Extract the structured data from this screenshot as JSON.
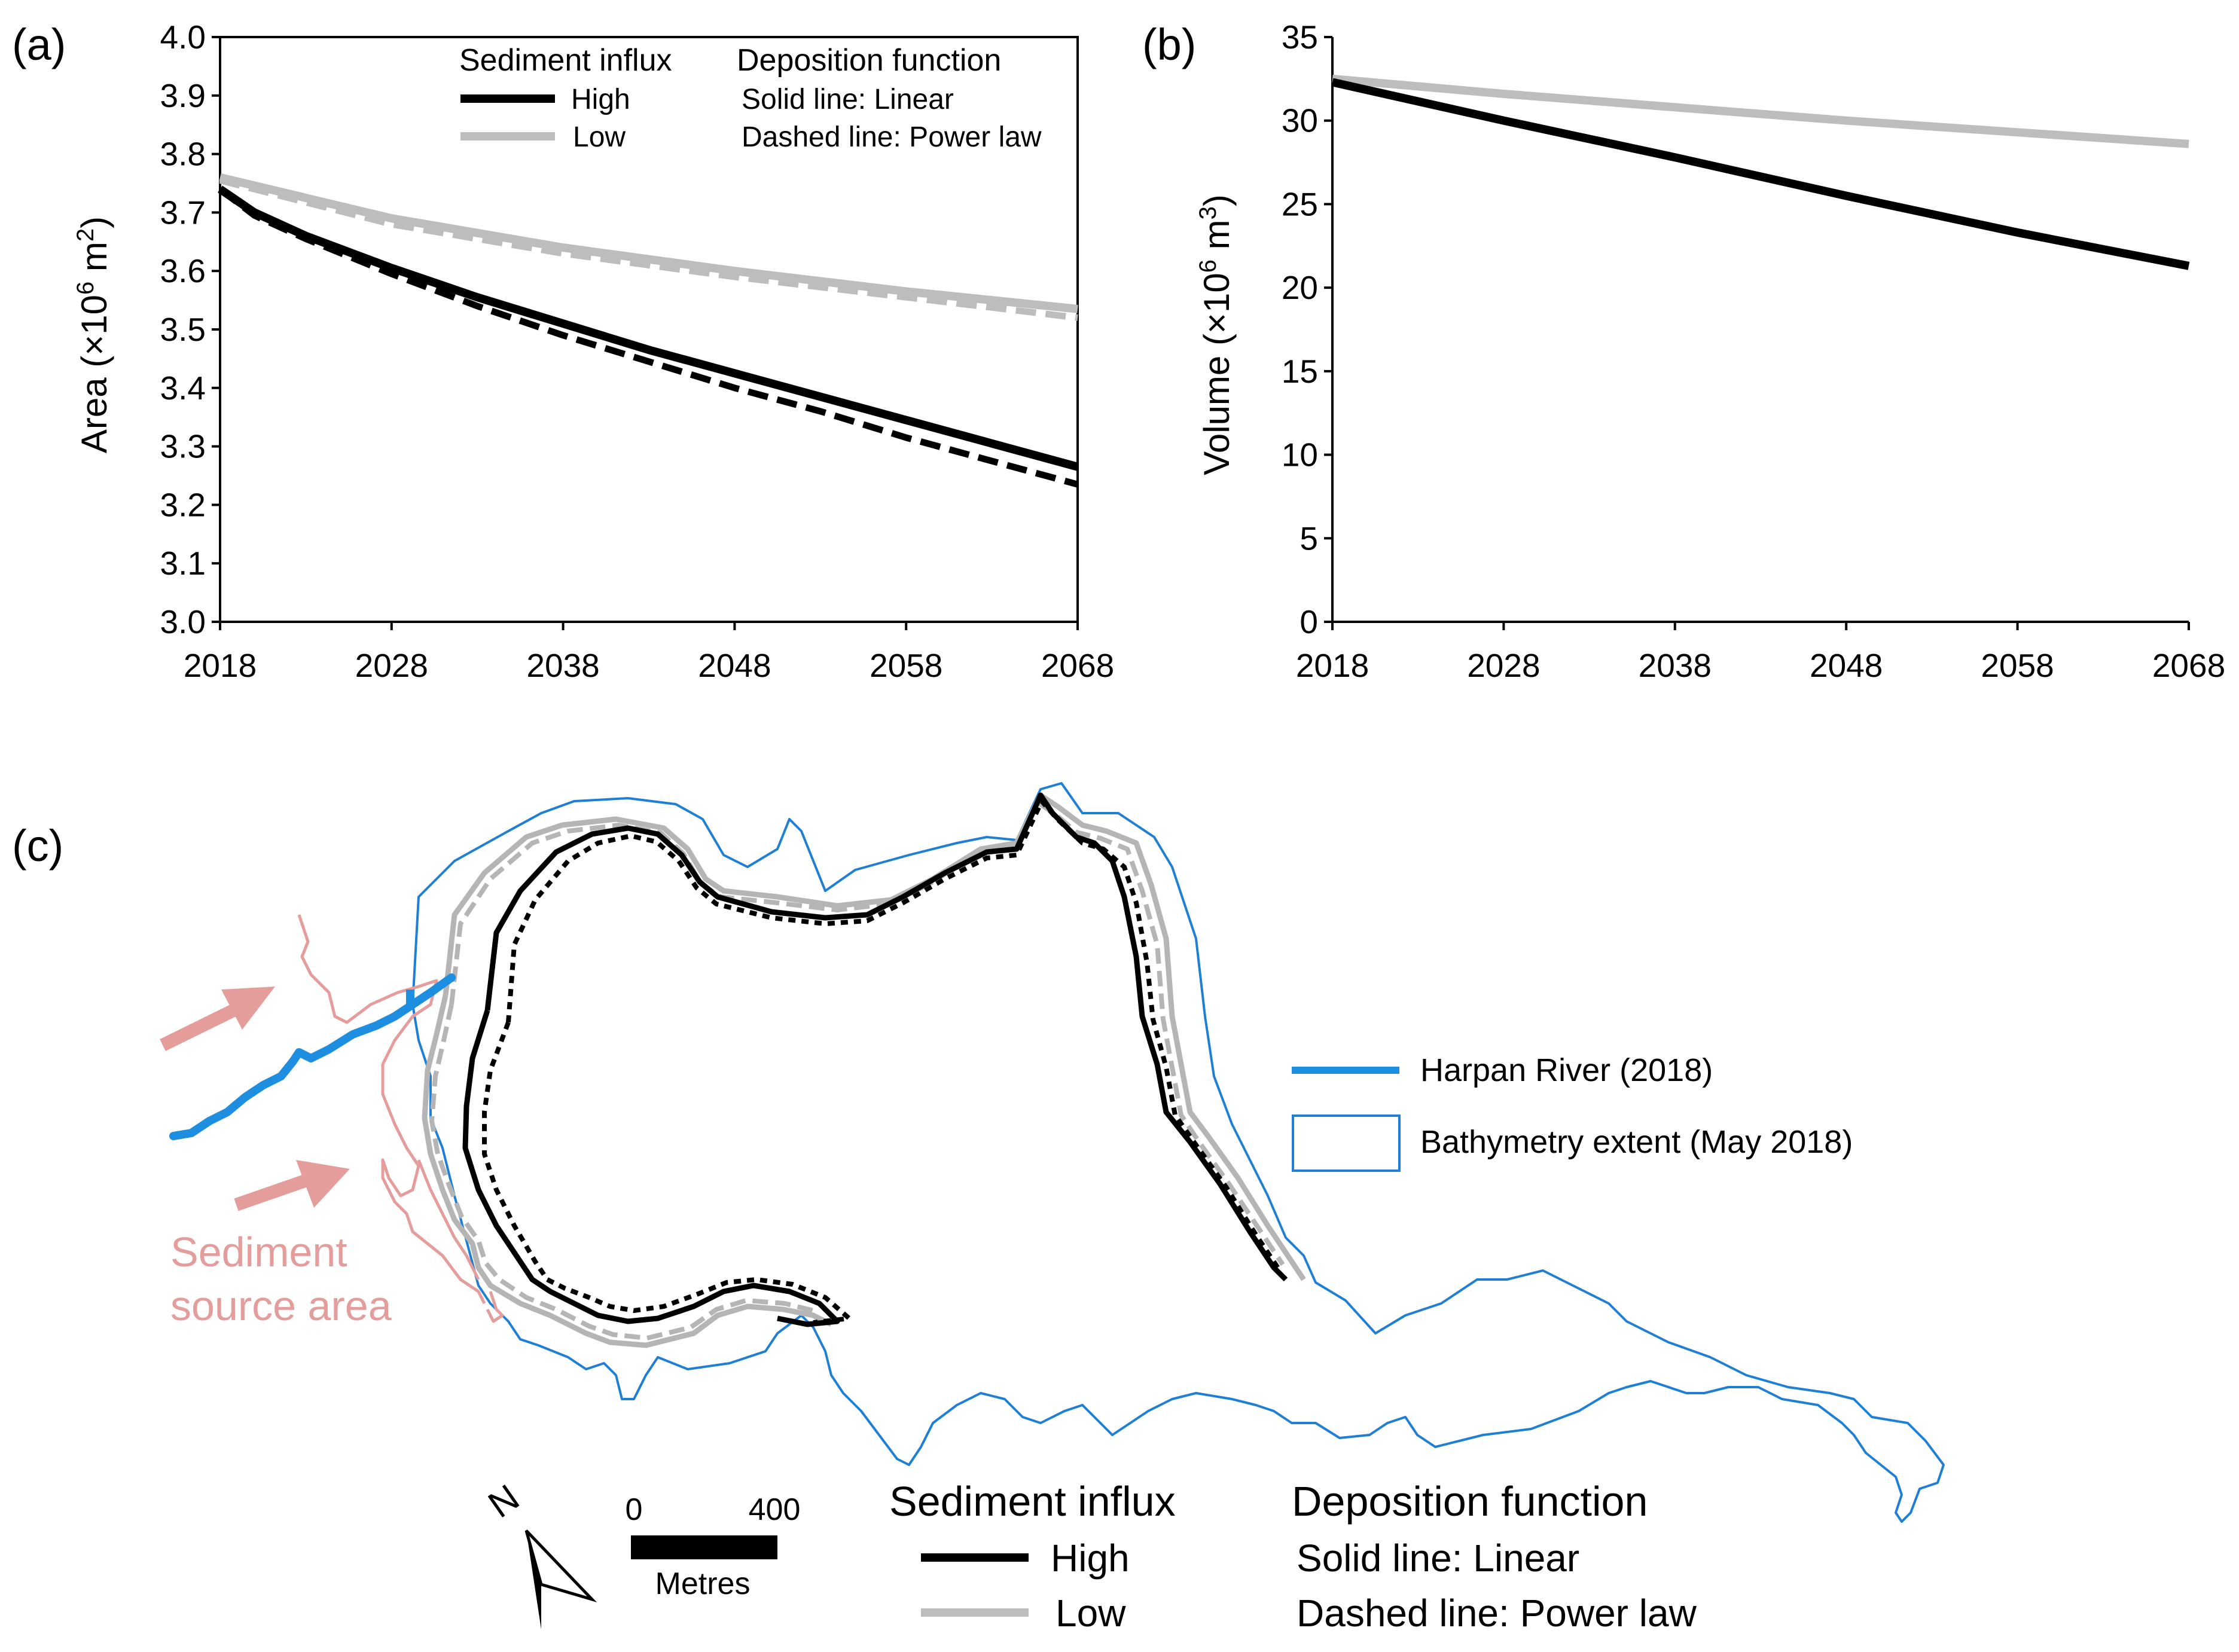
{
  "panel_a": {
    "label": "(a)",
    "ylabel": "Area (×10⁶ m²)",
    "ylabel_parts": {
      "prefix": "Area (×10",
      "exp1": "6",
      "mid": " m",
      "exp2": "2",
      "suffix": ")"
    },
    "legend": {
      "influx_title": "Sediment influx",
      "high": "High",
      "low": "Low",
      "deposition_title": "Deposition function",
      "solid": "Solid line: Linear",
      "dashed": "Dashed line: Power law"
    }
  },
  "panel_b": {
    "label": "(b)",
    "ylabel": "Volume (×10⁶ m³)",
    "ylabel_parts": {
      "prefix": "Volume (×10",
      "exp1": "6",
      "mid": " m",
      "exp2": "3",
      "suffix": ")"
    }
  },
  "panel_c": {
    "label": "(c)",
    "source_label_line1": "Sediment",
    "source_label_line2": "source area",
    "legend_river": "Harpan River (2018)",
    "legend_bathymetry": "Bathymetry extent (May 2018)",
    "north_label": "N",
    "scale_start": "0",
    "scale_end": "400",
    "scale_units": "Metres",
    "influx_title": "Sediment influx",
    "high": "High",
    "low": "Low",
    "deposition_title": "Deposition function",
    "solid": "Solid line: Linear",
    "dashed": "Dashed line: Power law"
  },
  "colors": {
    "high": "#000000",
    "low": "#bdbdbd",
    "river": "#1e8fe0",
    "bathymetry": "#1e7fd4",
    "source": "#e59d9c"
  },
  "chart_data": [
    {
      "type": "line",
      "id": "area",
      "title": "",
      "xlabel": "",
      "ylabel": "Area (×10⁶ m²)",
      "xlim": [
        2018,
        2068
      ],
      "ylim": [
        3.0,
        4.0
      ],
      "xticks": [
        2018,
        2028,
        2038,
        2048,
        2058,
        2068
      ],
      "yticks": [
        3.0,
        3.1,
        3.2,
        3.3,
        3.4,
        3.5,
        3.6,
        3.7,
        3.8,
        3.9,
        4.0
      ],
      "ytick_labels": [
        "3.0",
        "3.1",
        "3.2",
        "3.3",
        "3.4",
        "3.5",
        "3.6",
        "3.7",
        "3.8",
        "3.9",
        "4.0"
      ],
      "grid": false,
      "legend": "top-right",
      "series": [
        {
          "name": "High, Linear",
          "color": "#000000",
          "dash": false,
          "x": [
            2018,
            2020,
            2023,
            2028,
            2033,
            2038,
            2043,
            2048,
            2053,
            2058,
            2063,
            2068
          ],
          "y": [
            3.74,
            3.7,
            3.66,
            3.605,
            3.555,
            3.51,
            3.465,
            3.425,
            3.385,
            3.345,
            3.305,
            3.265
          ]
        },
        {
          "name": "High, Power law",
          "color": "#000000",
          "dash": true,
          "x": [
            2018,
            2020,
            2023,
            2028,
            2033,
            2038,
            2043,
            2048,
            2053,
            2058,
            2063,
            2068
          ],
          "y": [
            3.74,
            3.695,
            3.655,
            3.595,
            3.54,
            3.49,
            3.445,
            3.4,
            3.36,
            3.315,
            3.275,
            3.235
          ]
        },
        {
          "name": "Low, Linear",
          "color": "#bdbdbd",
          "dash": false,
          "x": [
            2018,
            2028,
            2038,
            2048,
            2058,
            2068
          ],
          "y": [
            3.76,
            3.69,
            3.64,
            3.6,
            3.565,
            3.535
          ]
        },
        {
          "name": "Low, Power law",
          "color": "#bdbdbd",
          "dash": true,
          "x": [
            2018,
            2028,
            2038,
            2048,
            2058,
            2068
          ],
          "y": [
            3.755,
            3.68,
            3.63,
            3.59,
            3.555,
            3.52
          ]
        }
      ]
    },
    {
      "type": "line",
      "id": "volume",
      "title": "",
      "xlabel": "",
      "ylabel": "Volume (×10⁶ m³)",
      "xlim": [
        2018,
        2068
      ],
      "ylim": [
        0,
        35
      ],
      "xticks": [
        2018,
        2028,
        2038,
        2048,
        2058,
        2068
      ],
      "yticks": [
        0,
        5,
        10,
        15,
        20,
        25,
        30,
        35
      ],
      "ytick_labels": [
        "0",
        "5",
        "10",
        "15",
        "20",
        "25",
        "30",
        "35"
      ],
      "grid": false,
      "series": [
        {
          "name": "High",
          "color": "#000000",
          "dash": false,
          "x": [
            2018,
            2028,
            2038,
            2048,
            2058,
            2068
          ],
          "y": [
            32.3,
            30.0,
            27.8,
            25.5,
            23.3,
            21.3
          ]
        },
        {
          "name": "Low",
          "color": "#bdbdbd",
          "dash": false,
          "x": [
            2018,
            2028,
            2038,
            2048,
            2058,
            2068
          ],
          "y": [
            32.5,
            31.6,
            30.8,
            30.0,
            29.3,
            28.6
          ]
        }
      ]
    }
  ]
}
